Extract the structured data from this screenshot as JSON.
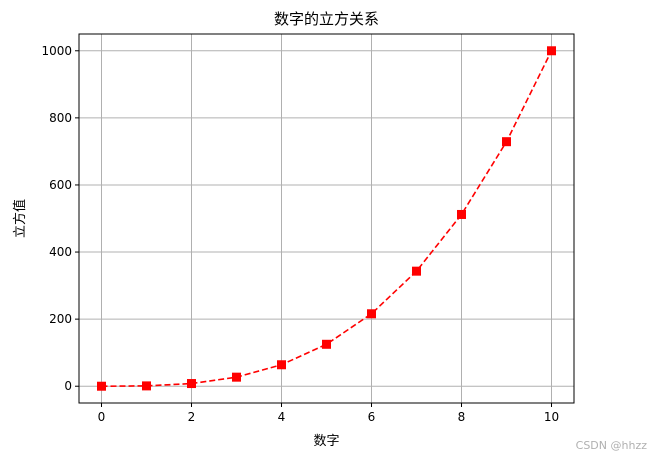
{
  "chart_data": {
    "type": "line",
    "title": "数字的立方关系",
    "xlabel": "数字",
    "ylabel": "立方值",
    "x": [
      0,
      1,
      2,
      3,
      4,
      5,
      6,
      7,
      8,
      9,
      10
    ],
    "series": [
      {
        "values": [
          0,
          1,
          8,
          27,
          64,
          125,
          216,
          343,
          512,
          729,
          1000
        ],
        "color": "#ff0000",
        "line_style": "dashed",
        "marker": "square"
      }
    ],
    "xticks": [
      0,
      2,
      4,
      6,
      8,
      10
    ],
    "yticks": [
      0,
      200,
      400,
      600,
      800,
      1000
    ],
    "xlim": [
      -0.5,
      10.5
    ],
    "ylim": [
      -50,
      1050
    ],
    "grid": true
  },
  "watermark": "CSDN @hhzz"
}
